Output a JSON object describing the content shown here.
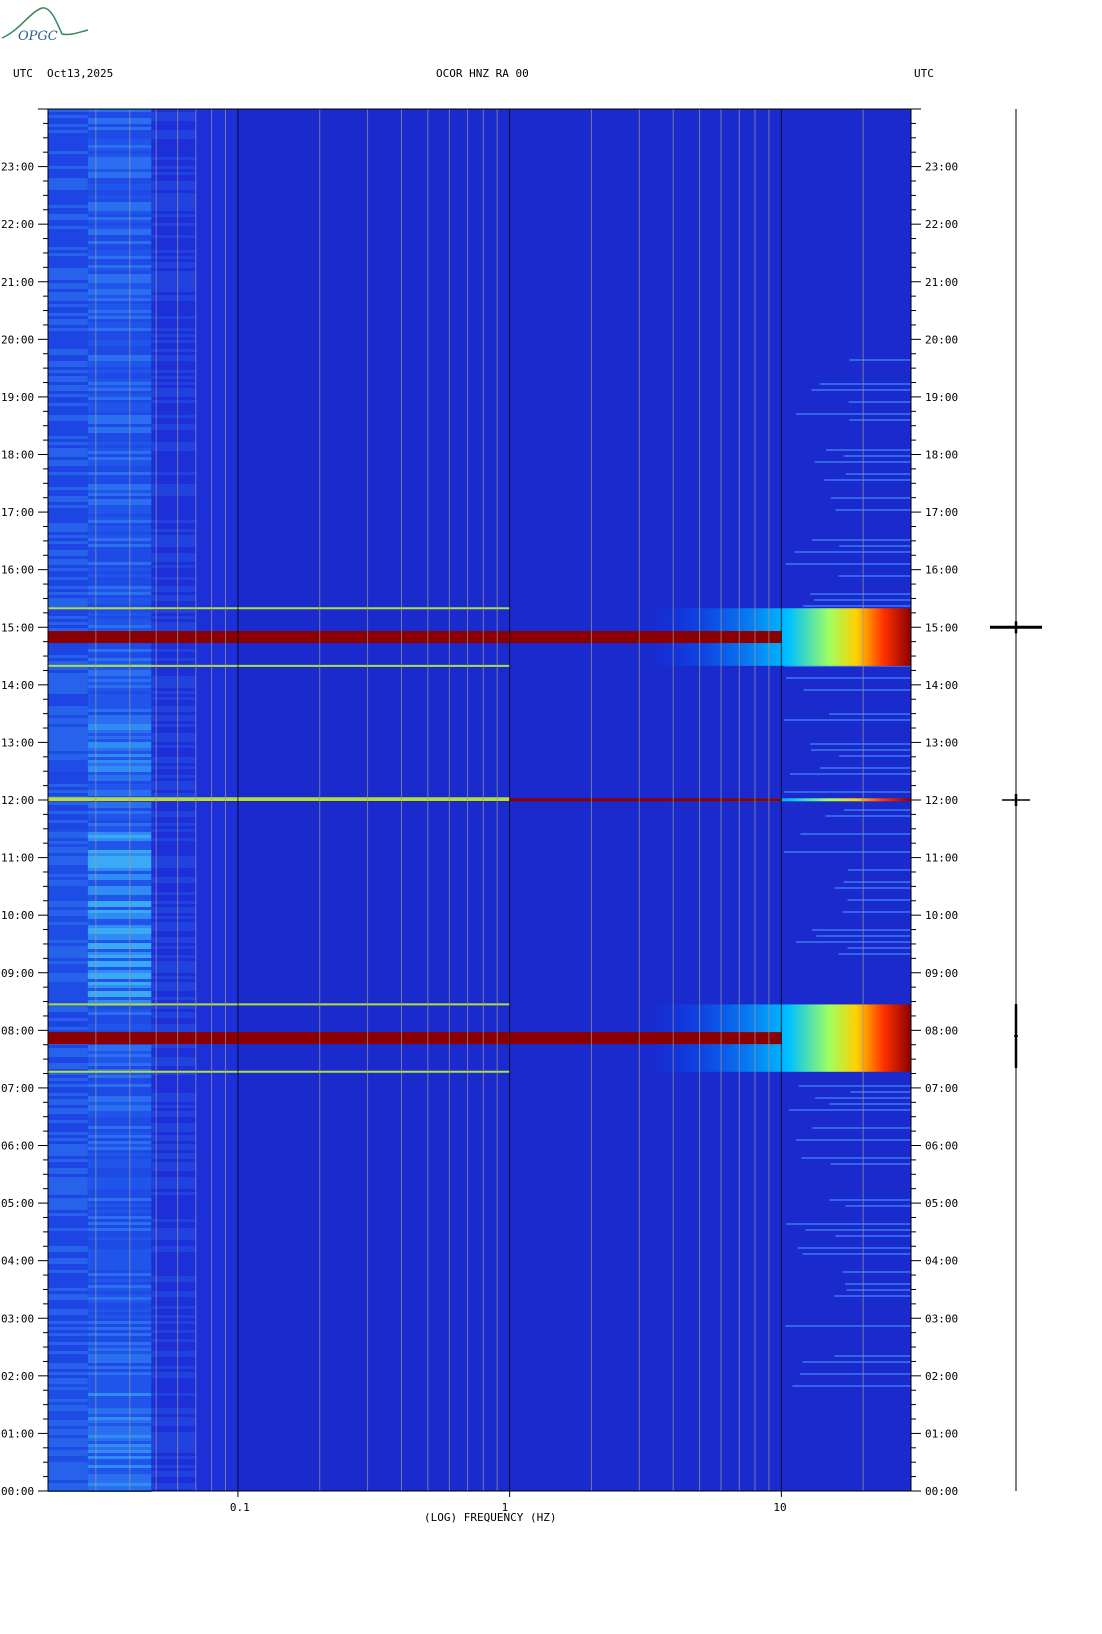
{
  "header": {
    "left_zone": "UTC",
    "date": "Oct13,2025",
    "station": "OCOR HNZ RA 00",
    "right_zone": "UTC"
  },
  "logo": {
    "text": "OPGC"
  },
  "chart_data": {
    "type": "heatmap",
    "title": "OCOR HNZ RA 00",
    "xlabel": "(LOG) FREQUENCY (HZ)",
    "xscale": "log",
    "xlim": [
      0.02,
      30
    ],
    "x_ticks": [
      {
        "value": 0.1,
        "label": "0.1"
      },
      {
        "value": 1,
        "label": "1"
      },
      {
        "value": 10,
        "label": "10"
      }
    ],
    "ylim_hours": [
      0,
      24
    ],
    "y_ticks_left": [
      "00:00",
      "01:00",
      "02:00",
      "03:00",
      "04:00",
      "05:00",
      "06:00",
      "07:00",
      "08:00",
      "09:00",
      "10:00",
      "11:00",
      "12:00",
      "13:00",
      "14:00",
      "15:00",
      "16:00",
      "17:00",
      "18:00",
      "19:00",
      "20:00",
      "21:00",
      "22:00",
      "23:00"
    ],
    "y_ticks_right": [
      "00:00",
      "01:00",
      "02:00",
      "03:00",
      "04:00",
      "05:00",
      "06:00",
      "07:00",
      "08:00",
      "09:00",
      "10:00",
      "11:00",
      "12:00",
      "13:00",
      "14:00",
      "15:00",
      "16:00",
      "17:00",
      "18:00",
      "19:00",
      "20:00",
      "21:00",
      "22:00",
      "23:00"
    ],
    "grid": true,
    "colormap": [
      "#00007f",
      "#0000ff",
      "#00bfff",
      "#7fff7f",
      "#ffff00",
      "#ff7f00",
      "#ff0000",
      "#7f0000"
    ],
    "events": [
      {
        "start_hour": 14.33,
        "end_hour": 15.33,
        "description_level": "high"
      },
      {
        "start_hour": 12.0,
        "end_hour": 12.03,
        "description_level": "high"
      },
      {
        "start_hour": 7.28,
        "end_hour": 8.45,
        "description_level": "high"
      }
    ],
    "trace_time_series": {
      "events_hours": [
        15.0,
        12.0,
        7.9
      ],
      "amplitude": "relative"
    }
  }
}
